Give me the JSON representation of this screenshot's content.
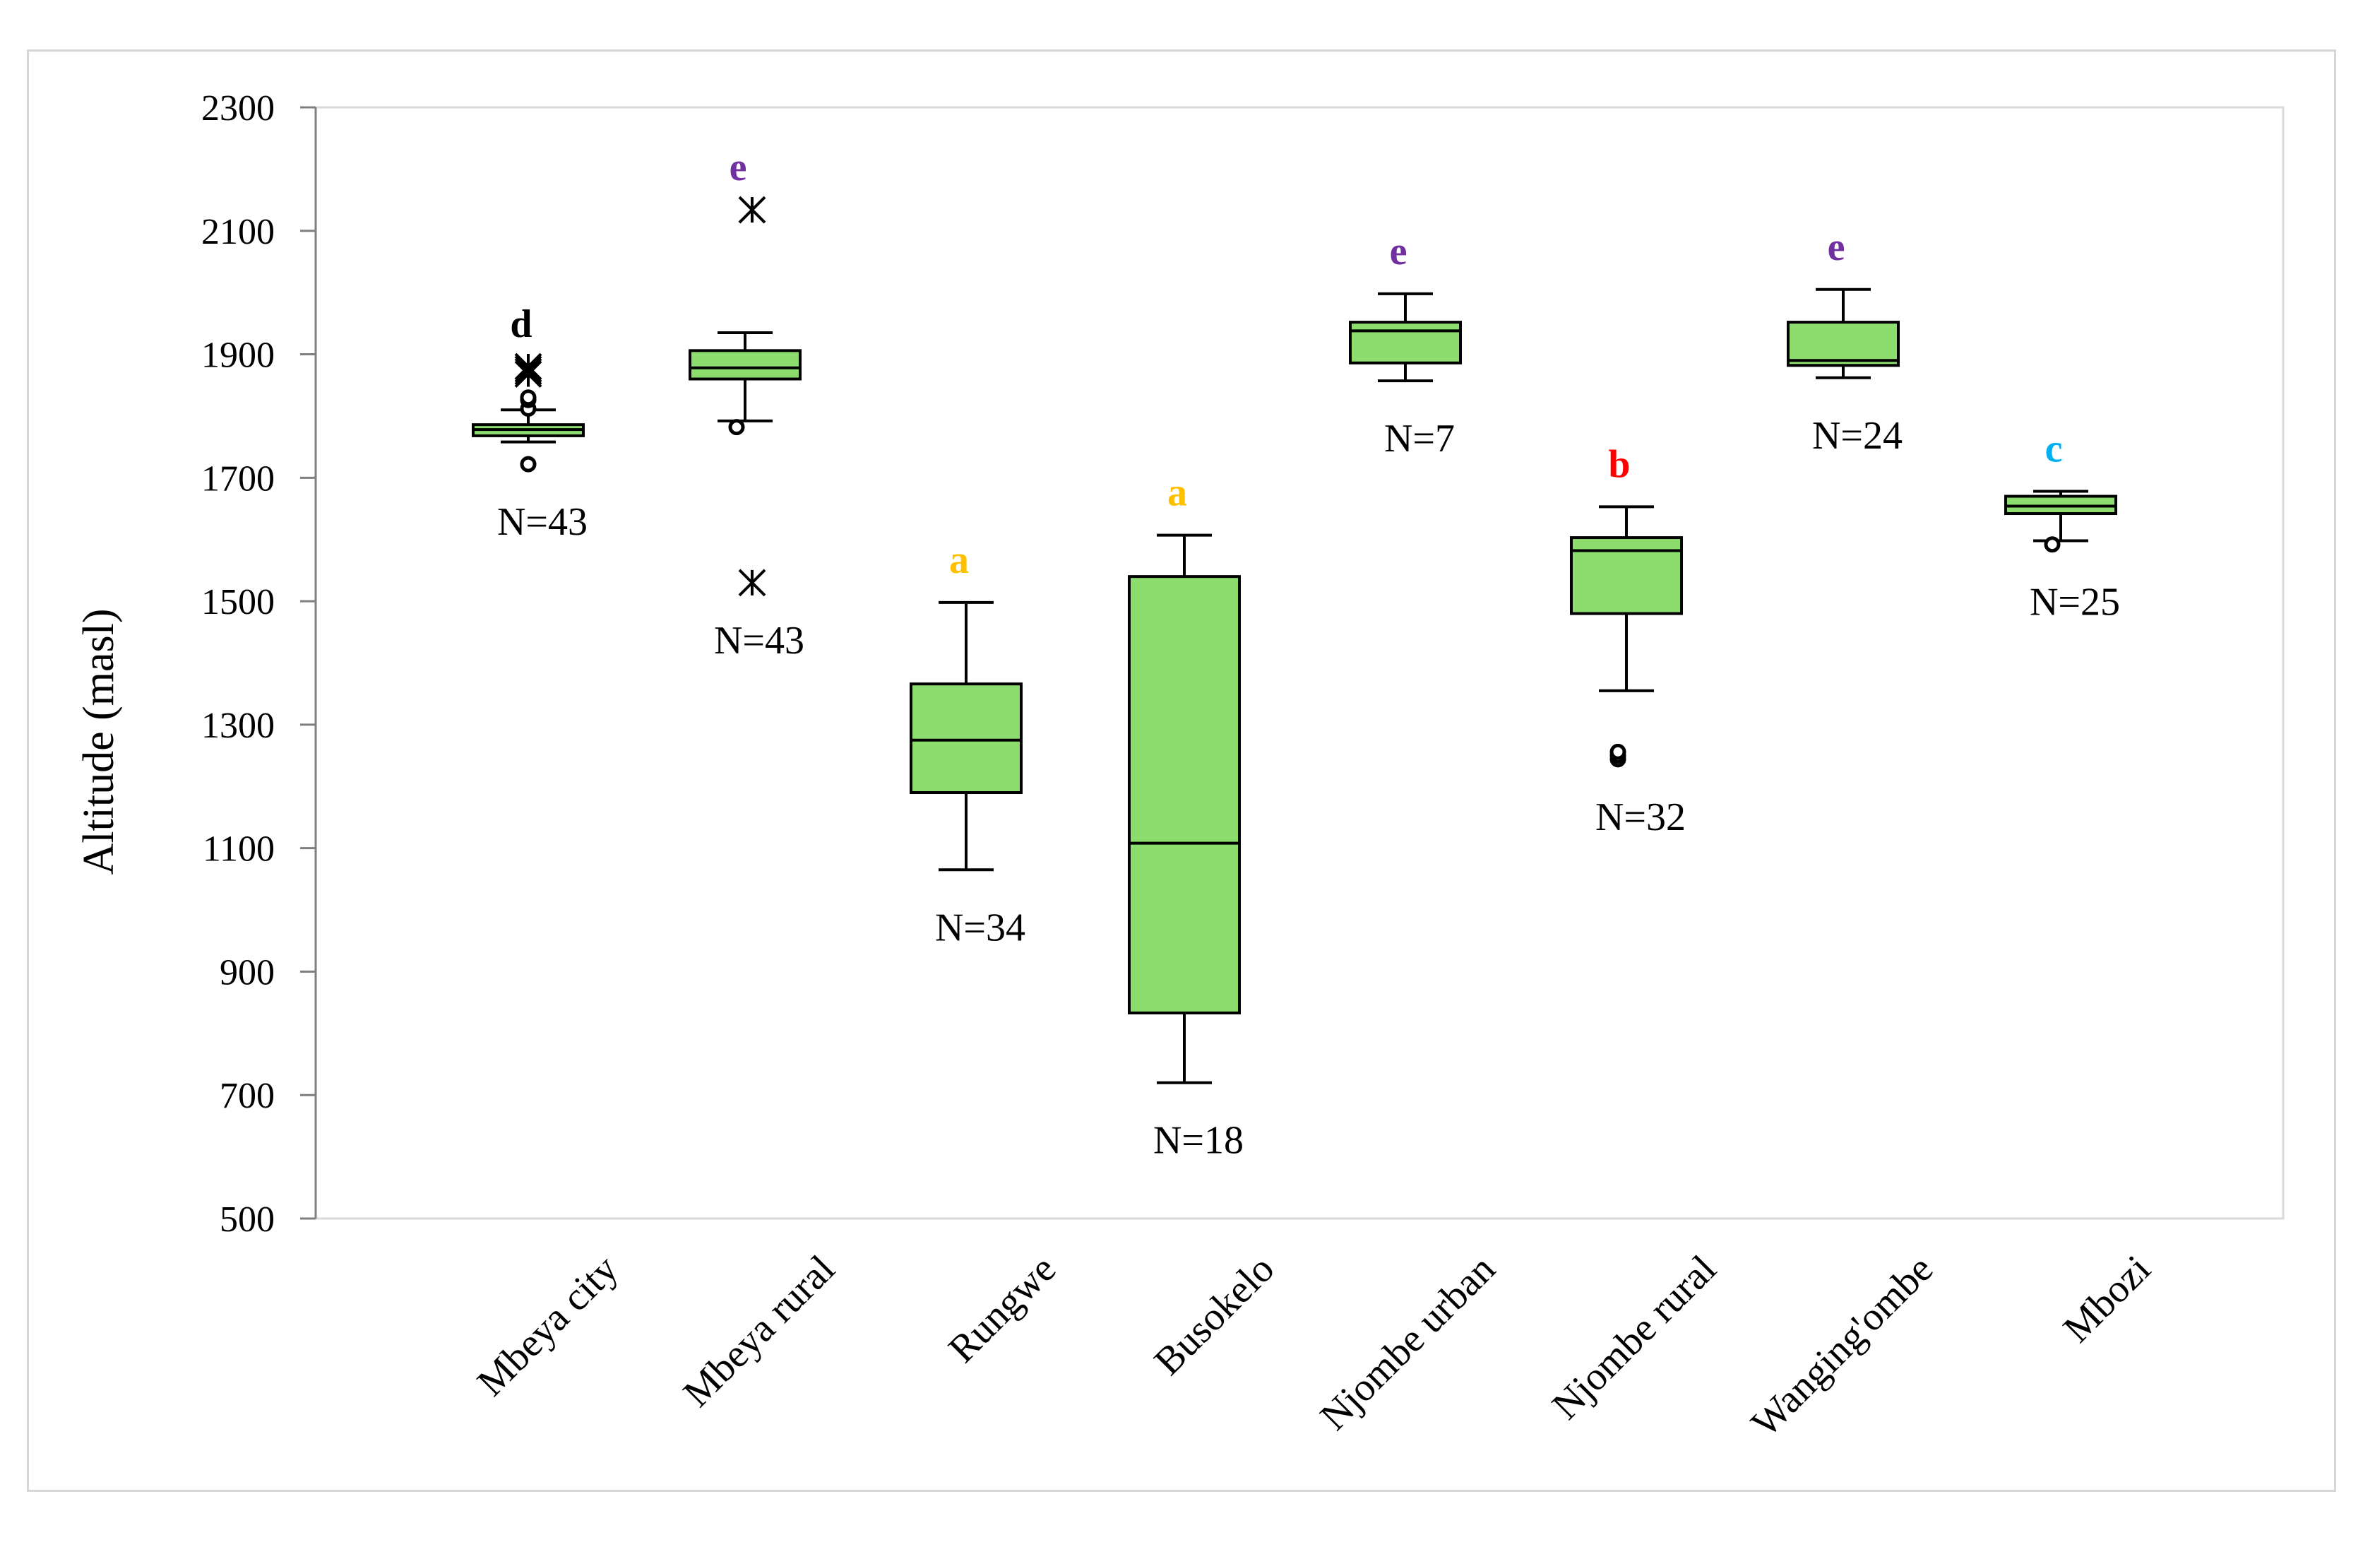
{
  "chart_data": {
    "type": "boxplot",
    "title": "",
    "xlabel": "",
    "ylabel": "Altitude (masl)",
    "ylim": [
      500,
      2300
    ],
    "yticks": [
      500,
      700,
      900,
      1100,
      1300,
      1500,
      1700,
      1900,
      2100,
      2300
    ],
    "grid": false,
    "box_color": "#8ddc6e",
    "series": [
      {
        "category": "Mbeya city",
        "n_label": "N=43",
        "n": 43,
        "letter": "d",
        "letter_color": "#000000",
        "whisker_low": 1758,
        "q1": 1768,
        "median": 1778,
        "q3": 1786,
        "whisker_high": 1810,
        "outliers": [
          1722,
          1812,
          1826,
          1830
        ],
        "extremes": [
          1868,
          1872,
          1876,
          1880
        ]
      },
      {
        "category": "Mbeya rural",
        "n_label": "N=43",
        "n": 43,
        "letter": "e",
        "letter_color": "#7030a0",
        "whisker_low": 1792,
        "q1": 1860,
        "median": 1878,
        "q3": 1906,
        "whisker_high": 1935,
        "outliers": [
          1782
        ],
        "extremes": [
          2134,
          1530
        ]
      },
      {
        "category": "Rungwe",
        "n_label": "N=34",
        "n": 34,
        "letter": "a",
        "letter_color": "#ffc000",
        "whisker_low": 1065,
        "q1": 1190,
        "median": 1275,
        "q3": 1366,
        "whisker_high": 1498,
        "outliers": [],
        "extremes": []
      },
      {
        "category": "Busokelo",
        "n_label": "N=18",
        "n": 18,
        "letter": "a",
        "letter_color": "#ffc000",
        "whisker_low": 720,
        "q1": 833,
        "median": 1108,
        "q3": 1540,
        "whisker_high": 1607,
        "outliers": [],
        "extremes": []
      },
      {
        "category": "Njombe urban",
        "n_label": "N=7",
        "n": 7,
        "letter": "e",
        "letter_color": "#7030a0",
        "whisker_low": 1857,
        "q1": 1886,
        "median": 1938,
        "q3": 1952,
        "whisker_high": 1998,
        "outliers": [],
        "extremes": []
      },
      {
        "category": "Njombe rural",
        "n_label": "N=32",
        "n": 32,
        "letter": "b",
        "letter_color": "#ff0000",
        "whisker_low": 1355,
        "q1": 1480,
        "median": 1582,
        "q3": 1603,
        "whisker_high": 1653,
        "outliers": [
          1244,
          1250,
          1256
        ],
        "extremes": []
      },
      {
        "category": "Wanging'ombe",
        "n_label": "N=24",
        "n": 24,
        "letter": "e",
        "letter_color": "#7030a0",
        "whisker_low": 1862,
        "q1": 1882,
        "median": 1890,
        "q3": 1952,
        "whisker_high": 2005,
        "outliers": [],
        "extremes": []
      },
      {
        "category": "Mbozi",
        "n_label": "N=25",
        "n": 25,
        "letter": "c",
        "letter_color": "#00b0f0",
        "whisker_low": 1598,
        "q1": 1642,
        "median": 1654,
        "q3": 1670,
        "whisker_high": 1678,
        "outliers": [
          1592
        ],
        "extremes": []
      }
    ]
  }
}
